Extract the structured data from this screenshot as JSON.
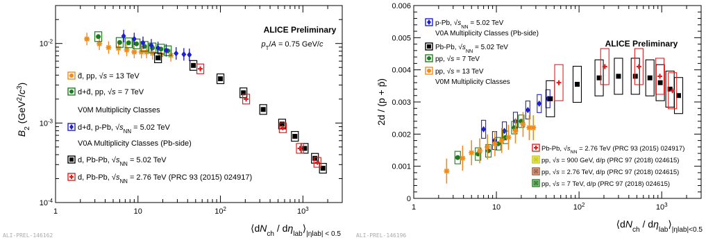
{
  "chart_data": [
    {
      "type": "scatter",
      "title": "ALICE Preliminary",
      "subtitle": "p_T/A = 0.75 GeV/c",
      "ylabel": "B_2 (GeV^2/c^3)",
      "xlabel": "⟨dN_ch / dη_lab⟩_|η_lab| < 0.5",
      "x_scale": "log",
      "y_scale": "log",
      "xlim": [
        1,
        3000
      ],
      "ylim": [
        0.0001,
        0.03
      ],
      "x_ticks": [
        "1",
        "10",
        "10^2",
        "10^3"
      ],
      "y_ticks": [
        "10^-4",
        "10^-3",
        "10^-2"
      ],
      "watermark": "ALI-PREL-146162",
      "legend_headers": [
        "V0M Multiplicity Classes",
        "V0A Multiplicity Classes (Pb-side)"
      ],
      "series": [
        {
          "name": "d̄, pp, √s = 13 TeV",
          "color": "#f08c1e",
          "marker": "star",
          "x": [
            2.4,
            3.4,
            4.4,
            5.8,
            7.3,
            9.0,
            11.0,
            12.7,
            15.0,
            19.0,
            25.0
          ],
          "y": [
            0.0114,
            0.0099,
            0.0089,
            0.0087,
            0.0083,
            0.0078,
            0.0078,
            0.0078,
            0.0075,
            0.0072,
            0.0071
          ]
        },
        {
          "name": "d+d̄, pp, √s = 7 TeV",
          "color": "#1e7a1e",
          "marker": "circle",
          "x": [
            3.3,
            6.0,
            7.7,
            9.6,
            12.0,
            15.0,
            19.0,
            23.0
          ],
          "y": [
            0.0122,
            0.0103,
            0.0102,
            0.0099,
            0.0092,
            0.0088,
            0.0085,
            0.0081
          ]
        },
        {
          "name": "d+d̄, p-Pb, √s_NN = 5.02 TeV",
          "color": "#1e1ed2",
          "marker": "diamond",
          "x": [
            6.7,
            9.0,
            11.5,
            14.5,
            17.5,
            22.0,
            29.0,
            36.0,
            42.0
          ],
          "y": [
            0.0124,
            0.0114,
            0.0102,
            0.0095,
            0.0088,
            0.0082,
            0.0075,
            0.0073,
            0.0072
          ]
        },
        {
          "name": "d, Pb-Pb, √s_NN = 5.02 TeV",
          "color": "#000000",
          "marker": "square",
          "x": [
            17.5,
            47.0,
            100.0,
            190.0,
            330.0,
            560.0,
            800.0,
            1050.0,
            1400.0,
            1750.0
          ],
          "y": [
            0.0066,
            0.0053,
            0.0036,
            0.0024,
            0.00148,
            0.00097,
            0.00068,
            0.00048,
            0.00036,
            0.00027
          ]
        },
        {
          "name": "d, Pb-Pb, √s_NN = 2.76 TeV (PRC 93 (2015) 024917)",
          "color": "#e01e1e",
          "marker": "plus",
          "x": [
            57.0,
            205.0,
            570.0,
            920.0,
            1500.0
          ],
          "y": [
            0.0048,
            0.002,
            0.00087,
            0.00048,
            0.00032
          ]
        }
      ]
    },
    {
      "type": "scatter",
      "title": "ALICE Preliminary",
      "ylabel": "2d / (p + p̄)",
      "xlabel": "⟨dN_ch / dη_lab⟩_|η_lab|<0.5",
      "x_scale": "log",
      "xlim": [
        1,
        3000
      ],
      "ylim": [
        0,
        0.006
      ],
      "x_ticks": [
        "1",
        "10",
        "10^2",
        "10^3"
      ],
      "y_ticks": [
        "0",
        "0.001",
        "0.002",
        "0.003",
        "0.004",
        "0.005",
        "0.006"
      ],
      "watermark": "ALI-PREL-146196",
      "legend_headers": [
        "V0A Multiplicity Classes (Pb-side)",
        "V0M Multiplicity Classes"
      ],
      "series": [
        {
          "name": "p-Pb, √s_NN = 5.02 TeV",
          "color": "#1e1ed2",
          "marker": "diamond",
          "x": [
            7.0,
            9.5,
            12.5,
            17.0,
            24.0,
            33.0,
            42.0
          ],
          "y": [
            0.00215,
            0.0018,
            0.0021,
            0.0024,
            0.00275,
            0.00295,
            0.0031
          ]
        },
        {
          "name": "Pb-Pb, √s_NN = 5.02 TeV",
          "color": "#000000",
          "marker": "square",
          "x": [
            45.0,
            95.0,
            175.0,
            300.0,
            480.0,
            720.0,
            960.0,
            1260.0,
            1600.0
          ],
          "y": [
            0.0031,
            0.00355,
            0.00375,
            0.0038,
            0.0038,
            0.00375,
            0.0036,
            0.0034,
            0.0032
          ]
        },
        {
          "name": "pp, √s = 7 TeV",
          "color": "#1e7a1e",
          "marker": "circle",
          "x": [
            3.4,
            6.0,
            8.0,
            10.5,
            13.0,
            16.5,
            20.0
          ],
          "y": [
            0.00127,
            0.00138,
            0.00148,
            0.0017,
            0.0019,
            0.0022,
            0.0024
          ]
        },
        {
          "name": "pp, √s = 13 TeV",
          "color": "#f08c1e",
          "marker": "star",
          "x": [
            2.5,
            3.9,
            5.0,
            6.3,
            7.8,
            9.6,
            11.6,
            14.0,
            17.0,
            21.0,
            25.0,
            28.0
          ],
          "y": [
            0.00085,
            0.00125,
            0.00142,
            0.00148,
            0.0016,
            0.0017,
            0.0018,
            0.0019,
            0.0021,
            0.0023,
            0.0022,
            0.0022
          ]
        },
        {
          "name": "Pb-Pb, √s_NN = 2.76 TeV (PRC 93 (2015) 024917)",
          "color": "#e01e1e",
          "marker": "plus",
          "x": [
            57.0,
            205.0,
            530.0,
            950.0,
            1350.0
          ],
          "y": [
            0.0036,
            0.0041,
            0.0041,
            0.0038,
            0.00335
          ]
        },
        {
          "name": "pp, √s = 900 GeV, d/p (PRC 97 (2018) 024615)",
          "color": "#c8c800",
          "marker": "box-cross",
          "x": [],
          "y": []
        },
        {
          "name": "pp, √s = 2.76 TeV, d/p (PRC 97 (2018) 024615)",
          "color": "#a0522d",
          "marker": "box-cross",
          "x": [],
          "y": []
        },
        {
          "name": "pp, √s = 7 TeV, d/p (PRC 97 (2018) 024615)",
          "color": "#1e7a1e",
          "marker": "box-cross",
          "x": [],
          "y": []
        }
      ]
    }
  ]
}
